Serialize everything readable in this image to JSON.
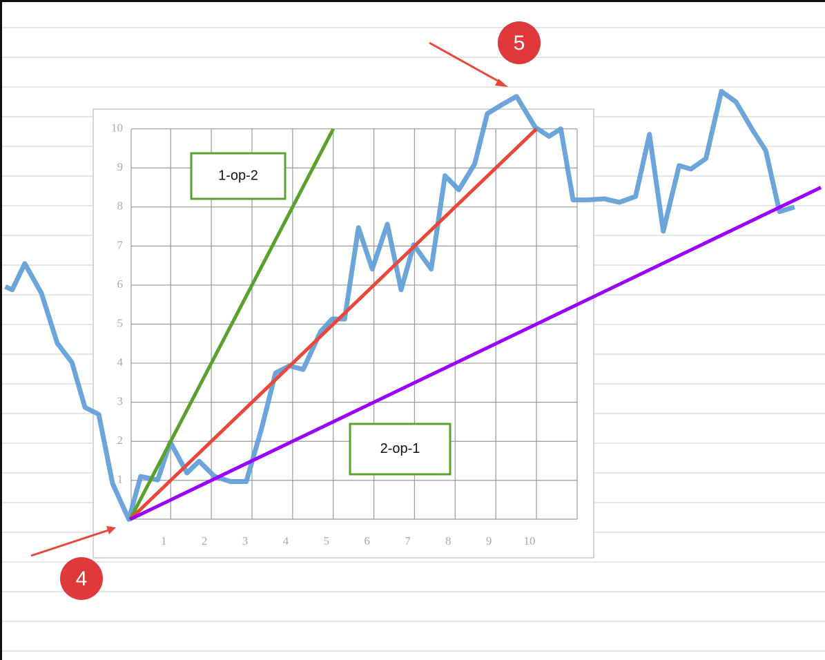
{
  "chart_data": {
    "type": "line",
    "xlim": [
      -3.2,
      17.1
    ],
    "ylim": [
      -3.6,
      13.3
    ],
    "xticks": [
      1,
      2,
      3,
      4,
      5,
      6,
      7,
      8,
      9,
      10
    ],
    "yticks": [
      1,
      2,
      3,
      4,
      5,
      6,
      7,
      8,
      9,
      10
    ],
    "grid": true,
    "series": [
      {
        "color": "#5b9bd5",
        "x": [
          -3.07,
          -2.9,
          -2.59,
          -2.18,
          -1.79,
          -1.43,
          -1.11,
          -0.77,
          -0.43,
          -0.03,
          0.26,
          0.68,
          0.99,
          1.4,
          1.7,
          2.08,
          2.47,
          2.86,
          3.24,
          3.58,
          3.92,
          4.26,
          4.69,
          4.97,
          5.28,
          5.62,
          5.96,
          6.33,
          6.67,
          6.98,
          7.41,
          7.75,
          8.09,
          8.48,
          8.79,
          9.2,
          9.51,
          9.97,
          10.31,
          10.6,
          10.9,
          11.24,
          11.67,
          12.04,
          12.44,
          12.78,
          13.12,
          13.51,
          13.8,
          14.17,
          14.55,
          14.91,
          15.33,
          15.64,
          15.98,
          16.35
        ],
        "values": [
          5.96,
          5.88,
          6.55,
          5.79,
          4.51,
          4.02,
          2.87,
          2.69,
          0.92,
          0,
          1.1,
          1.01,
          1.98,
          1.19,
          1.49,
          1.1,
          0.97,
          0.97,
          2.34,
          3.75,
          3.93,
          3.84,
          4.81,
          5.13,
          5.13,
          7.47,
          6.41,
          7.56,
          5.88,
          7.03,
          6.41,
          8.8,
          8.44,
          9.1,
          10.39,
          10.65,
          10.83,
          10.04,
          9.81,
          10.0,
          8.18,
          8.18,
          8.21,
          8.12,
          8.27,
          9.86,
          7.38,
          9.06,
          8.97,
          9.24,
          10.96,
          10.69,
          9.95,
          9.45,
          7.88,
          8.0
        ]
      },
      {
        "color": "#5aa02c",
        "x": [
          0,
          5
        ],
        "values": [
          0,
          10
        ]
      },
      {
        "color": "#e8473b",
        "x": [
          0,
          10
        ],
        "values": [
          0,
          10
        ]
      },
      {
        "color": "#9a00ff",
        "x": [
          0,
          17
        ],
        "values": [
          0,
          8.5
        ]
      }
    ],
    "annotations": [
      "1-op-2",
      "2-op-1"
    ],
    "markers": [
      "4",
      "5"
    ]
  }
}
